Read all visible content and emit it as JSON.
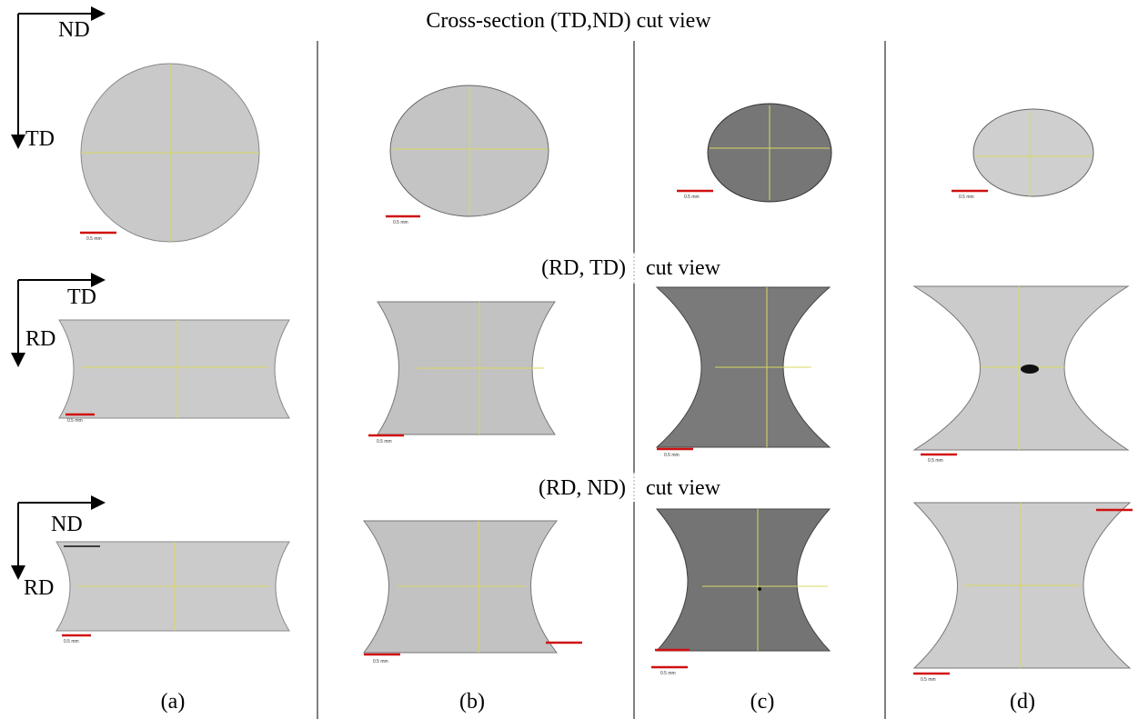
{
  "title": "Cross-section (TD,ND) cut view",
  "section_labels": [
    {
      "left": "(RD, TD)",
      "right": "cut view"
    },
    {
      "left": "(RD, ND)",
      "right": "cut view"
    }
  ],
  "axes": [
    {
      "horizontal": "ND",
      "vertical": "TD"
    },
    {
      "horizontal": "TD",
      "vertical": "RD"
    },
    {
      "horizontal": "ND",
      "vertical": "RD"
    }
  ],
  "scale_label": "0.5 mm",
  "columns": [
    "(a)",
    "(b)",
    "(c)",
    "(d)"
  ]
}
